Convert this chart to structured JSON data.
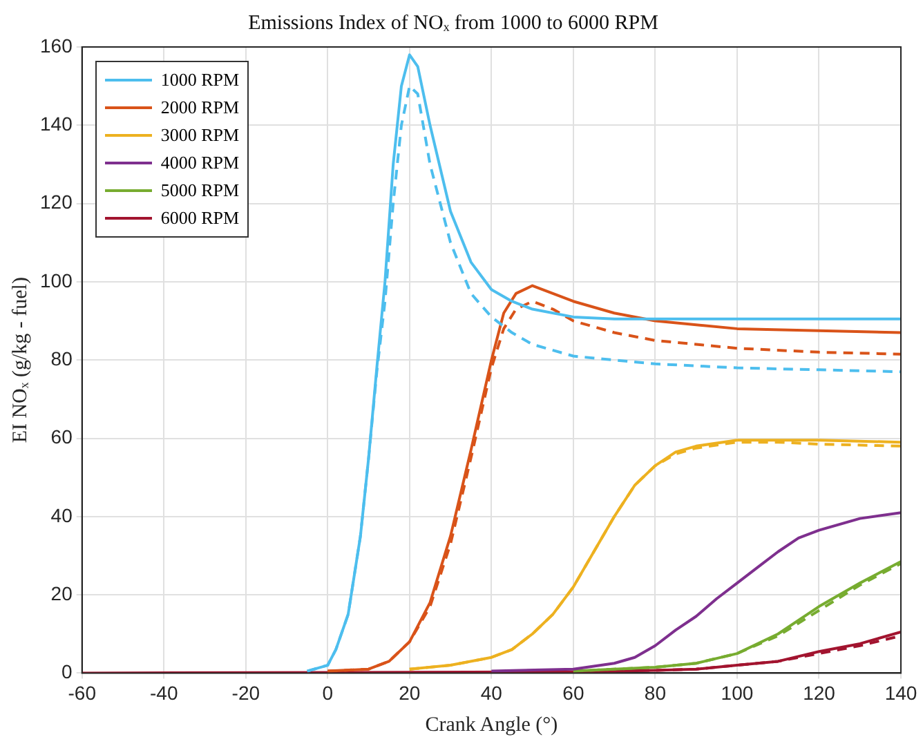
{
  "chart_data": {
    "type": "line",
    "title": "Emissions Index of NOₓ from 1000 to 6000 RPM",
    "xlabel": "Crank Angle (°)",
    "ylabel": "EI NOₓ (g/kg - fuel)",
    "xlim": [
      -60,
      140
    ],
    "xticks": [
      -60,
      -40,
      -20,
      0,
      20,
      40,
      60,
      80,
      100,
      120,
      140
    ],
    "ylim": [
      0,
      160
    ],
    "yticks": [
      0,
      20,
      40,
      60,
      80,
      100,
      120,
      140,
      160
    ],
    "grid": true,
    "legend": "top left",
    "series": [
      {
        "name": "1000 RPM",
        "color": "#4dbeee",
        "x": [
          -5,
          0,
          2,
          5,
          8,
          10,
          12,
          14,
          16,
          18,
          20,
          22,
          25,
          30,
          35,
          40,
          45,
          50,
          60,
          70,
          80,
          100,
          120,
          140
        ],
        "values": [
          0.5,
          2,
          6,
          15,
          35,
          55,
          78,
          100,
          130,
          150,
          158,
          155,
          140,
          118,
          105,
          98,
          95,
          93,
          91,
          90.5,
          90.5,
          90.5,
          90.5,
          90.5
        ]
      },
      {
        "color": "#4dbeee",
        "line_style": "dashed",
        "x": [
          -5,
          0,
          2,
          5,
          8,
          10,
          12,
          14,
          16,
          18,
          20,
          22,
          25,
          30,
          35,
          40,
          45,
          50,
          60,
          70,
          80,
          100,
          120,
          140
        ],
        "values": [
          0.5,
          2,
          6,
          15,
          35,
          55,
          77,
          95,
          120,
          140,
          150,
          148,
          130,
          110,
          97,
          91,
          87,
          84,
          81,
          80,
          79,
          78,
          77.5,
          77
        ]
      },
      {
        "name": "2000 RPM",
        "color": "#d95319",
        "x": [
          0,
          10,
          15,
          20,
          25,
          30,
          35,
          40,
          43,
          46,
          50,
          55,
          60,
          70,
          80,
          100,
          120,
          140
        ],
        "values": [
          0.5,
          1,
          3,
          8,
          18,
          35,
          57,
          80,
          92,
          97,
          99,
          97,
          95,
          92,
          90,
          88,
          87.5,
          87
        ]
      },
      {
        "color": "#d95319",
        "line_style": "dashed",
        "x": [
          0,
          10,
          15,
          20,
          25,
          30,
          35,
          40,
          43,
          46,
          50,
          55,
          60,
          70,
          80,
          100,
          120,
          140
        ],
        "values": [
          0.5,
          1,
          3,
          8,
          17,
          33,
          55,
          78,
          88,
          93,
          95,
          93,
          90,
          87,
          85,
          83,
          82,
          81.5
        ]
      },
      {
        "name": "3000 RPM",
        "color": "#edb120",
        "x": [
          20,
          30,
          40,
          45,
          50,
          55,
          60,
          65,
          70,
          75,
          80,
          85,
          90,
          100,
          110,
          120,
          140
        ],
        "values": [
          1,
          2,
          4,
          6,
          10,
          15,
          22,
          31,
          40,
          48,
          53,
          56.5,
          58,
          59.5,
          59.5,
          59.5,
          59
        ]
      },
      {
        "color": "#edb120",
        "line_style": "dashed",
        "x": [
          20,
          30,
          40,
          45,
          50,
          55,
          60,
          65,
          70,
          75,
          80,
          85,
          90,
          100,
          110,
          120,
          140
        ],
        "values": [
          1,
          2,
          4,
          6,
          10,
          15,
          22,
          31,
          40,
          48,
          53,
          56,
          57.5,
          59,
          59,
          58.5,
          58
        ]
      },
      {
        "name": "4000 RPM",
        "color": "#7e2f8e",
        "x": [
          40,
          60,
          70,
          75,
          80,
          85,
          90,
          95,
          100,
          105,
          110,
          115,
          120,
          130,
          140
        ],
        "values": [
          0.5,
          1,
          2.5,
          4,
          7,
          11,
          14.5,
          19,
          23,
          27,
          31,
          34.5,
          36.5,
          39.5,
          41
        ]
      },
      {
        "name": "5000 RPM",
        "color": "#77ac30",
        "x": [
          60,
          70,
          80,
          90,
          100,
          110,
          120,
          130,
          140
        ],
        "values": [
          0.5,
          1,
          1.5,
          2.5,
          5,
          10,
          17,
          23,
          28.5
        ]
      },
      {
        "color": "#77ac30",
        "line_style": "dashed",
        "x": [
          60,
          70,
          80,
          90,
          100,
          110,
          120,
          130,
          140
        ],
        "values": [
          0.5,
          1,
          1.5,
          2.5,
          5,
          9.5,
          16,
          22.5,
          28
        ]
      },
      {
        "name": "6000 RPM",
        "color": "#a2142f",
        "x": [
          -60,
          60,
          80,
          90,
          100,
          110,
          120,
          130,
          140
        ],
        "values": [
          0,
          0.3,
          0.7,
          1,
          2,
          3,
          5.5,
          7.5,
          10.5
        ]
      },
      {
        "color": "#a2142f",
        "line_style": "dashed",
        "x": [
          60,
          80,
          90,
          100,
          110,
          120,
          130,
          140
        ],
        "values": [
          0.3,
          0.7,
          1,
          2,
          3,
          5,
          7,
          9.5
        ]
      }
    ]
  }
}
